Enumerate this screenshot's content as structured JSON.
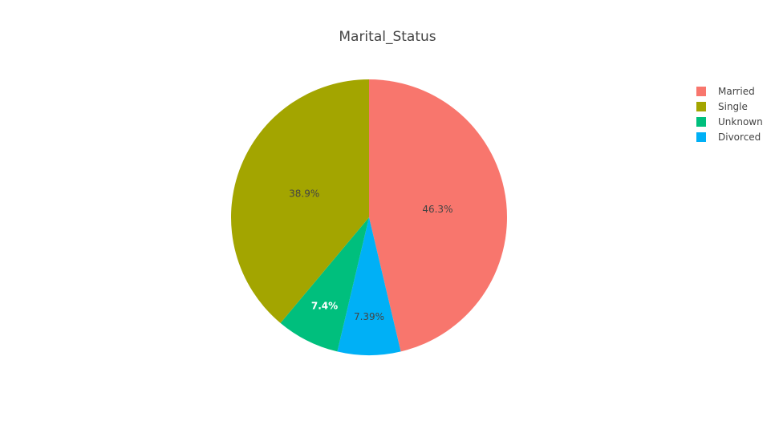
{
  "chart_data": {
    "type": "pie",
    "title": "Marital_Status",
    "slices": [
      {
        "label": "Married",
        "percent_label": "46.3%",
        "value": 46.3,
        "color": "#F8766D"
      },
      {
        "label": "Single",
        "percent_label": "38.9%",
        "value": 38.9,
        "color": "#A3A500"
      },
      {
        "label": "Unknown",
        "percent_label": "7.4%",
        "value": 7.4,
        "color": "#00BF7D"
      },
      {
        "label": "Divorced",
        "percent_label": "7.39%",
        "value": 7.39,
        "color": "#00B0F6"
      }
    ],
    "slice_order": [
      "Married",
      "Divorced",
      "Unknown",
      "Single"
    ],
    "direction": "clockwise",
    "start": "top",
    "legend_position": "top-right"
  }
}
